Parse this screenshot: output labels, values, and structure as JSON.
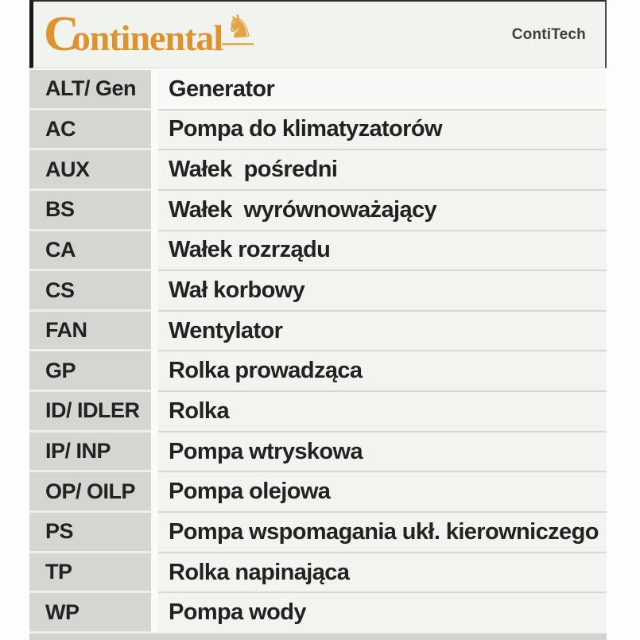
{
  "header": {
    "logo_letter_c": "C",
    "logo_text_rest": "ontinental",
    "logo_full": "Continental",
    "horse_icon": "rearing-horse-icon",
    "brand": "ContiTech"
  },
  "legend_table": {
    "rows": [
      {
        "code": "ALT/ Gen",
        "description": "Generator"
      },
      {
        "code": "AC",
        "description": "Pompa do klimatyzatorów"
      },
      {
        "code": "AUX",
        "description": "Wałek  pośredni"
      },
      {
        "code": "BS",
        "description": "Wałek  wyrównoważający"
      },
      {
        "code": "CA",
        "description": "Wałek rozrządu"
      },
      {
        "code": "CS",
        "description": "Wał korbowy"
      },
      {
        "code": "FAN",
        "description": "Wentylator"
      },
      {
        "code": "GP",
        "description": "Rolka prowadząca"
      },
      {
        "code": "ID/ IDLER",
        "description": "Rolka"
      },
      {
        "code": "IP/ INP",
        "description": "Pompa wtryskowa"
      },
      {
        "code": "OP/ OILP",
        "description": "Pompa olejowa"
      },
      {
        "code": "PS",
        "description": "Pompa wspomagania ukł. kierowniczego"
      },
      {
        "code": "TP",
        "description": "Rolka napinająca"
      },
      {
        "code": "WP",
        "description": "Pompa wody"
      }
    ]
  },
  "colors": {
    "logo_orange": "#dd9330",
    "horse_orange": "#e2a546",
    "brand_gray": "#3e3e3e",
    "header_bg": "#f1f4ee",
    "code_cell_bg": "#d5d6d2",
    "desc_cell_bg": "#f3f4f0",
    "text": "#222222",
    "page_margin": "#fdfdfd"
  }
}
